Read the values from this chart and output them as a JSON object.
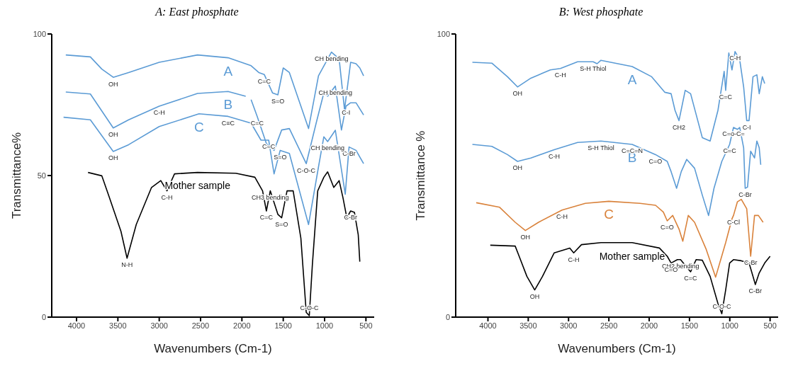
{
  "chart_data": [
    {
      "type": "line",
      "title": "A: East phosphate",
      "xlabel": "Wavenumbers (Cm-1)",
      "ylabel": "Transmittance%",
      "xlim": [
        4300,
        400
      ],
      "ylim": [
        0,
        100
      ],
      "xticks": [
        4000,
        3500,
        3000,
        2500,
        2000,
        1500,
        1000,
        500
      ],
      "yticks": [
        0,
        50,
        100
      ],
      "series": [
        {
          "name": "A",
          "color": "#5b9bd5",
          "x": [
            4130,
            3833,
            3694,
            3556,
            3370,
            3000,
            2537,
            2167,
            1889,
            1796,
            1730,
            1630,
            1565,
            1500,
            1426,
            1194,
            1074,
            917,
            824,
            759,
            685,
            620,
            574,
            528
          ],
          "values": [
            92.6,
            91.9,
            87.6,
            84.7,
            86.4,
            90,
            92.6,
            91.6,
            88.8,
            86.4,
            85.7,
            79.2,
            78.5,
            88,
            86.4,
            66.6,
            85.2,
            93.6,
            91.2,
            73.3,
            90,
            89.5,
            88,
            85.2
          ]
        },
        {
          "name": "B",
          "color": "#5b9bd5",
          "x": [
            4130,
            3833,
            3556,
            3370,
            3000,
            2537,
            2167,
            1954,
            1910,
            1889,
            1815,
            1704,
            1611,
            1519,
            1426,
            1222,
            1102,
            1009,
            963,
            870,
            796,
            741,
            685,
            620,
            528
          ],
          "values": [
            79.5,
            78.8,
            66.8,
            69.7,
            74.5,
            79,
            79.7,
            78,
            null,
            76.8,
            70.9,
            61.3,
            58.9,
            66.1,
            66.6,
            54.2,
            68.5,
            79.2,
            78,
            81.6,
            66.1,
            74.5,
            75.7,
            75.7,
            71.4
          ]
        },
        {
          "name": "C",
          "color": "#5b9bd5",
          "x": [
            4157,
            3833,
            3556,
            3370,
            3000,
            2519,
            2167,
            1889,
            1769,
            1676,
            1611,
            1537,
            1426,
            1194,
            1074,
            1009,
            963,
            870,
            750,
            704,
            620,
            528
          ],
          "values": [
            70.6,
            69.7,
            58.5,
            60.9,
            67.3,
            71.8,
            70.9,
            68.5,
            62.5,
            62.5,
            50.6,
            58.9,
            57.8,
            32.7,
            53,
            63.7,
            62,
            66,
            43.4,
            60.1,
            58.9,
            54.2
          ]
        },
        {
          "name": "Mother sample",
          "color": "#000000",
          "x": [
            3861,
            3694,
            3602,
            3463,
            3389,
            3278,
            3093,
            2981,
            2907,
            2815,
            2537,
            2074,
            1843,
            1750,
            1704,
            1657,
            1565,
            1519,
            1454,
            1380,
            1287,
            1222,
            1185,
            1148,
            1083,
            1009,
            963,
            889,
            824,
            778,
            731,
            685,
            639,
            593,
            574
          ],
          "values": [
            51.1,
            49.9,
            42.2,
            30.3,
            20.8,
            32.7,
            45.8,
            48.2,
            44.6,
            50.6,
            51.1,
            50.8,
            49.4,
            44.6,
            37.5,
            44.6,
            36.3,
            35.1,
            44.6,
            44.6,
            27.9,
            1.7,
            0.5,
            18.4,
            44.6,
            49.4,
            51.3,
            45.8,
            48.2,
            42.2,
            35.1,
            37.5,
            37,
            29.1,
            19.6
          ]
        }
      ],
      "annotations": [
        {
          "text": "OH",
          "x": 3556,
          "y": 84.7
        },
        {
          "text": "C=C",
          "x": 1730,
          "y": 85.7
        },
        {
          "text": "S=O",
          "x": 1565,
          "y": 78.5
        },
        {
          "text": "CH bending",
          "x": 917,
          "y": 93.6
        },
        {
          "text": "C-H",
          "x": 3000,
          "y": 74.5
        },
        {
          "text": "OH",
          "x": 3556,
          "y": 66.8
        },
        {
          "text": "C≡C",
          "x": 2167,
          "y": 70.9
        },
        {
          "text": "C=C",
          "x": 1815,
          "y": 70.9
        },
        {
          "text": "CH bending",
          "x": 870,
          "y": 81.6
        },
        {
          "text": "C-I",
          "x": 741,
          "y": 74.5
        },
        {
          "text": "C=C",
          "x": 1676,
          "y": 62.5
        },
        {
          "text": "S=O",
          "x": 1537,
          "y": 58.9
        },
        {
          "text": "C-Br",
          "x": 704,
          "y": 60.1
        },
        {
          "text": "OH",
          "x": 3556,
          "y": 58.5
        },
        {
          "text": "CH bending",
          "x": 963,
          "y": 62
        },
        {
          "text": "C-O-C",
          "x": 1222,
          "y": 54.2
        },
        {
          "text": "CH3 bending",
          "x": 1657,
          "y": 44.6
        },
        {
          "text": "C-H",
          "x": 2907,
          "y": 44.6
        },
        {
          "text": "C-Br",
          "x": 685,
          "y": 37.5
        },
        {
          "text": "C=C",
          "x": 1704,
          "y": 37.5
        },
        {
          "text": "S=O",
          "x": 1519,
          "y": 35.1
        },
        {
          "text": "N-H",
          "x": 3389,
          "y": 20.8
        },
        {
          "text": "C-O-C",
          "x": 1185,
          "y": 0.5
        }
      ]
    },
    {
      "type": "line",
      "title": "B: West phosphate",
      "xlabel": "Wavenumbers (Cm-1)",
      "ylabel": "Transmittance %",
      "xlim": [
        4400,
        400
      ],
      "ylim": [
        0,
        100
      ],
      "xticks": [
        4000,
        3500,
        3000,
        2500,
        2000,
        1500,
        1000,
        500
      ],
      "yticks": [
        0,
        100
      ],
      "series": [
        {
          "name": "A",
          "color": "#5b9bd5",
          "x": [
            4193,
            3952,
            3758,
            3633,
            3468,
            3226,
            3101,
            2888,
            2695,
            2646,
            2598,
            2211,
            1969,
            1805,
            1728,
            1679,
            1630,
            1553,
            1486,
            1341,
            1244,
            1147,
            1070,
            1051,
            1012,
            973,
            935,
            877,
            828,
            790,
            761,
            712,
            664,
            635,
            596,
            567
          ],
          "values": [
            90,
            89.7,
            84.9,
            81.3,
            84.4,
            87.3,
            87.8,
            90.2,
            90.2,
            89.5,
            90.7,
            88.5,
            84.9,
            79.4,
            78.9,
            73,
            69.4,
            80.1,
            78.9,
            63.4,
            62.2,
            73,
            86.8,
            80.1,
            93.3,
            87.3,
            93.8,
            90.9,
            81.3,
            69.4,
            69.4,
            84.9,
            85.6,
            78.9,
            84.9,
            82.5
          ]
        },
        {
          "name": "B",
          "color": "#5b9bd5",
          "x": [
            4193,
            3952,
            3758,
            3633,
            3468,
            3178,
            2888,
            2598,
            2211,
            1921,
            1776,
            1728,
            1660,
            1602,
            1534,
            1437,
            1341,
            1263,
            1196,
            1099,
            1002,
            954,
            906,
            877,
            828,
            809,
            780,
            741,
            693,
            664,
            635,
            616
          ],
          "values": [
            61,
            60.3,
            57.4,
            55,
            56.2,
            59.1,
            61.7,
            62.2,
            61,
            57.4,
            55,
            51.4,
            45.5,
            51.4,
            55.7,
            52.6,
            43.1,
            35.9,
            45.5,
            55,
            61,
            67,
            66.3,
            67,
            59.8,
            45.5,
            45.9,
            58.6,
            56.2,
            62.2,
            59.8,
            53.8
          ]
        },
        {
          "name": "C",
          "color": "#d9823b",
          "x": [
            4145,
            3855,
            3662,
            3536,
            3372,
            3081,
            2792,
            2501,
            2114,
            1921,
            1824,
            1776,
            1708,
            1630,
            1583,
            1515,
            1437,
            1292,
            1176,
            1051,
            973,
            954,
            906,
            857,
            790,
            741,
            693,
            645,
            587
          ],
          "values": [
            40.4,
            38.8,
            33.5,
            30.6,
            33.5,
            37.8,
            40.2,
            40.9,
            40.2,
            39.5,
            37.1,
            34,
            35.9,
            31.1,
            26.8,
            35.9,
            33.5,
            23.9,
            14.1,
            26.3,
            34.7,
            35.9,
            40.7,
            41.6,
            38.3,
            21.5,
            35.9,
            35.9,
            33.5
          ]
        },
        {
          "name": "Mother sample",
          "color": "#000000",
          "x": [
            3971,
            3662,
            3613,
            3517,
            3420,
            3323,
            3178,
            2985,
            2936,
            2840,
            2598,
            2211,
            1873,
            1776,
            1728,
            1650,
            1611,
            1486,
            1418,
            1341,
            1244,
            1147,
            1099,
            1051,
            1002,
            954,
            857,
            761,
            712,
            683,
            635,
            567,
            500
          ],
          "values": [
            25.4,
            25.1,
            21.5,
            14.4,
            9.6,
            14.4,
            22.7,
            24.4,
            22.7,
            25.6,
            26.3,
            26.3,
            24.4,
            21.5,
            19.1,
            20.3,
            20.3,
            16,
            20.3,
            20.1,
            14.4,
            4.8,
            1.2,
            9.6,
            19.1,
            20.3,
            19.9,
            19.1,
            14.4,
            11.5,
            15.6,
            19.1,
            21.5
          ]
        }
      ],
      "annotations": [
        {
          "text": "OH",
          "x": 3633,
          "y": 81.3
        },
        {
          "text": "C-H",
          "x": 3101,
          "y": 87.8
        },
        {
          "text": "S-H Thiol",
          "x": 2695,
          "y": 90.2
        },
        {
          "text": "CH2",
          "x": 1630,
          "y": 69.4
        },
        {
          "text": "C-H",
          "x": 935,
          "y": 93.8
        },
        {
          "text": "C=C",
          "x": 1051,
          "y": 80.1
        },
        {
          "text": "C-I",
          "x": 790,
          "y": 69.4
        },
        {
          "text": "OH",
          "x": 3633,
          "y": 55
        },
        {
          "text": "C-H",
          "x": 3178,
          "y": 59.1
        },
        {
          "text": "S-H Thiol",
          "x": 2598,
          "y": 62.2
        },
        {
          "text": "C=C=N",
          "x": 2211,
          "y": 61
        },
        {
          "text": "C=O",
          "x": 1921,
          "y": 57.4
        },
        {
          "text": "C=C",
          "x": 1002,
          "y": 61
        },
        {
          "text": "C=o-C=",
          "x": 954,
          "y": 67
        },
        {
          "text": "C-Br",
          "x": 809,
          "y": 45.5
        },
        {
          "text": "C-H",
          "x": 3081,
          "y": 37.8
        },
        {
          "text": "OH",
          "x": 3536,
          "y": 30.6
        },
        {
          "text": "C=O",
          "x": 1776,
          "y": 34
        },
        {
          "text": "C-Cl",
          "x": 954,
          "y": 35.9
        },
        {
          "text": "C-Br",
          "x": 741,
          "y": 21.5
        },
        {
          "text": "CH2 bending",
          "x": 1611,
          "y": 20.3
        },
        {
          "text": "C=O",
          "x": 1728,
          "y": 19.1
        },
        {
          "text": "C-H",
          "x": 2936,
          "y": 22.7
        },
        {
          "text": "C=C",
          "x": 1486,
          "y": 16
        },
        {
          "text": "OH",
          "x": 3420,
          "y": 9.6
        },
        {
          "text": "C-O-C",
          "x": 1099,
          "y": 1.2
        },
        {
          "text": "C-Br",
          "x": 683,
          "y": 11.5
        }
      ]
    }
  ]
}
